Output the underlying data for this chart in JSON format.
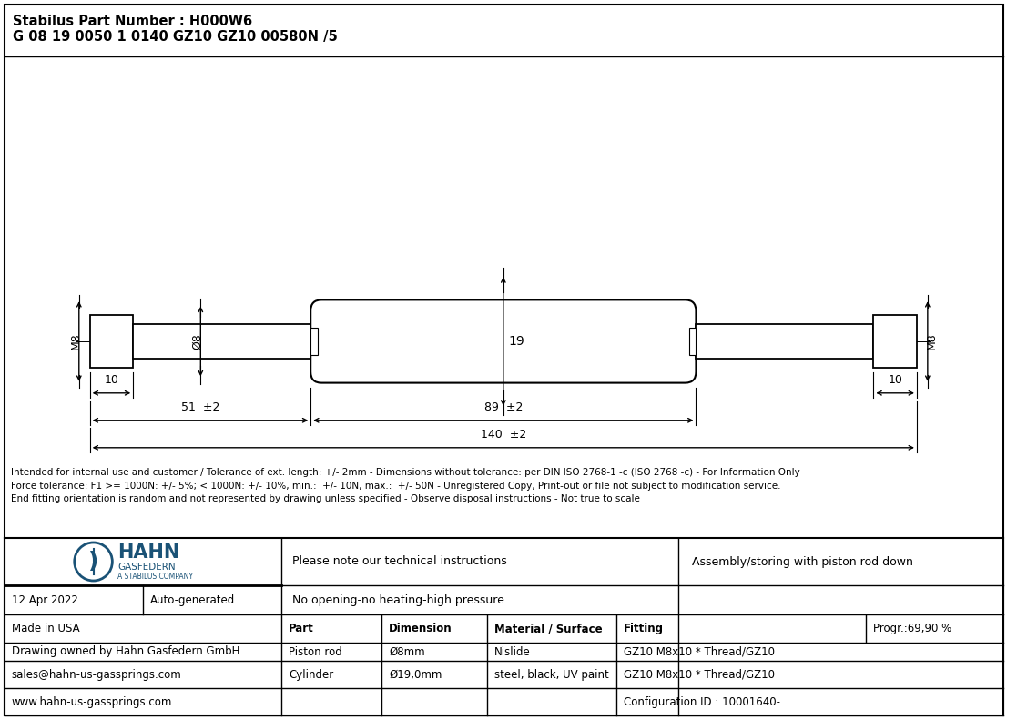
{
  "title_line1": "Stabilus Part Number : H000W6",
  "title_line2": "G 08 19 0050 1 0140 GZ10 GZ10 00580N /5",
  "disclaimer": "Intended for internal use and customer / Tolerance of ext. length: +/- 2mm - Dimensions without tolerance: per DIN ISO 2768-1 -c (ISO 2768 -c) - For Information Only\nForce tolerance: F1 >= 1000N: +/- 5%; < 1000N: +/- 10%, min.:  +/- 10N, max.:  +/- 50N - Unregistered Copy, Print-out or file not subject to modification service.\nEnd fitting orientation is random and not represented by drawing unless specified - Observe disposal instructions - Not true to scale",
  "date": "12 Apr 2022",
  "generated": "Auto-generated",
  "made_in": "Made in USA",
  "drawing_owner": "Drawing owned by Hahn Gasfedern GmbH",
  "email": "sales@hahn-us-gassprings.com",
  "website": "www.hahn-us-gassprings.com",
  "note1": "Please note our technical instructions",
  "note2": "No opening-no heating-high pressure",
  "assembly_note": "Assembly/storing with piston rod down",
  "progr": "Progr.:69,90 %",
  "col_headers": [
    "Part",
    "Dimension",
    "Material / Surface",
    "Fitting"
  ],
  "row1": [
    "Piston rod",
    "Ø8mm",
    "Nislide",
    "GZ10 M8x10 * Thread/GZ10"
  ],
  "row2": [
    "Cylinder",
    "Ø19,0mm",
    "steel, black, UV paint",
    "GZ10 M8x10 * Thread/GZ10"
  ],
  "config_id": "Configuration ID : 10001640-",
  "dim_m8_left": "M8",
  "dim_m8_right": "M8",
  "dim_d8": "Ø8",
  "dim_19": "19",
  "dim_10_left": "10",
  "dim_10_right": "10",
  "dim_51_tol": "±2",
  "dim_89_tol": "±2",
  "dim_140_tol": "±2",
  "border_color": "#000000",
  "drawing_bg": "#ffffff",
  "text_color": "#000000",
  "blue_color": "#1a5276",
  "header_bg": "#ffffff"
}
